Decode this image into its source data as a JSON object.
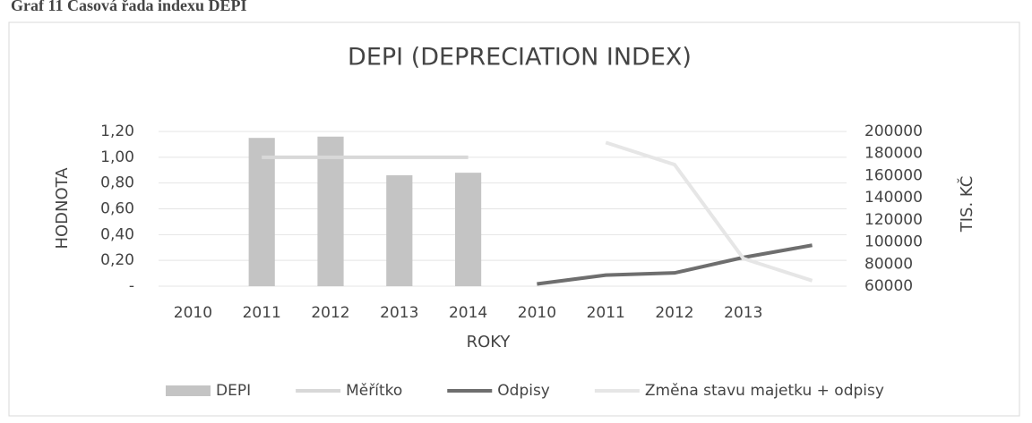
{
  "heading": "Graf 11 Časová řada indexu DEPI",
  "chart_data": {
    "type": "combo",
    "title": "DEPI (DEPRECIATION INDEX)",
    "x_label": "ROKY",
    "y_label": "HODNOTA",
    "y2_label": "TIS. KČ",
    "categories": [
      "2010",
      "2011",
      "2012",
      "2013",
      "2014",
      "2010",
      "2011",
      "2012",
      "2013",
      null
    ],
    "series": [
      {
        "name": "DEPI",
        "type": "bar",
        "color": "#c4c4c4",
        "values": [
          null,
          1.15,
          1.16,
          0.86,
          0.88,
          null,
          null,
          null,
          null,
          null
        ]
      },
      {
        "name": "Měřítko",
        "type": "line",
        "color": "#d8d8d8",
        "values": [
          null,
          1.0,
          1.0,
          1.0,
          1.0,
          null,
          null,
          null,
          null,
          null
        ]
      },
      {
        "name": "Odpisy",
        "type": "line",
        "axis": "y2",
        "color": "#6e6e6e",
        "values": [
          null,
          null,
          null,
          null,
          null,
          62000,
          70000,
          72000,
          86000,
          97000
        ]
      },
      {
        "name": "Změna stavu majetku + odpisy",
        "type": "line",
        "axis": "y2",
        "color": "#e6e6e6",
        "values": [
          null,
          null,
          null,
          null,
          null,
          null,
          190000,
          170000,
          85000,
          65000
        ]
      }
    ],
    "ylim": [
      0,
      1.2
    ],
    "yticks": [
      {
        "value": 0,
        "label": "-"
      },
      {
        "value": 0.2,
        "label": "0,20"
      },
      {
        "value": 0.4,
        "label": "0,40"
      },
      {
        "value": 0.6,
        "label": "0,60"
      },
      {
        "value": 0.8,
        "label": "0,80"
      },
      {
        "value": 1.0,
        "label": "1,00"
      },
      {
        "value": 1.2,
        "label": "1,20"
      }
    ],
    "y2lim": [
      60000,
      200000
    ],
    "y2ticks": [
      60000,
      80000,
      100000,
      120000,
      140000,
      160000,
      180000,
      200000
    ],
    "grid": true,
    "legend": "bottom"
  }
}
